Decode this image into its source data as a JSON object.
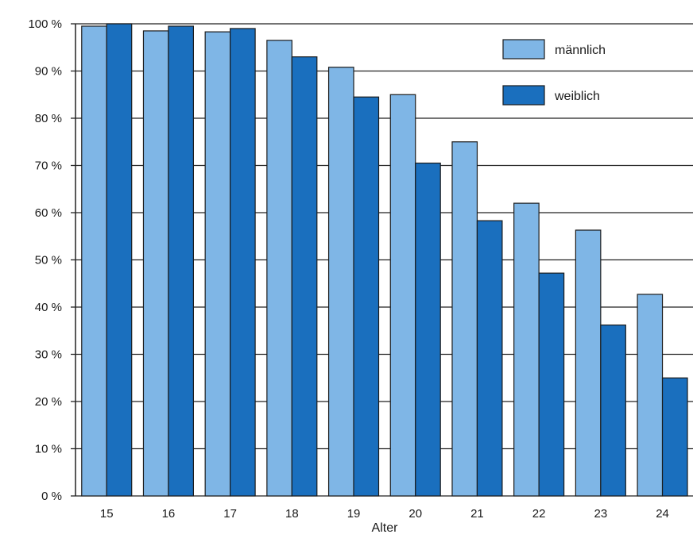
{
  "chart_data": {
    "type": "bar",
    "title": "",
    "xlabel": "Alter",
    "ylabel": "",
    "categories": [
      "15",
      "16",
      "17",
      "18",
      "19",
      "20",
      "21",
      "22",
      "23",
      "24"
    ],
    "ylim": [
      0,
      100
    ],
    "yticks": [
      0,
      10,
      20,
      30,
      40,
      50,
      60,
      70,
      80,
      90,
      100
    ],
    "ytick_labels": [
      "0 %",
      "10 %",
      "20 %",
      "30 %",
      "40 %",
      "50 %",
      "60 %",
      "70 %",
      "80 %",
      "90 %",
      "100 %"
    ],
    "grid": "horizontal",
    "legend_position": "top-right",
    "series": [
      {
        "name": "männlich",
        "color": "#7fb6e6",
        "values": [
          99.5,
          98.5,
          98.3,
          96.5,
          90.8,
          85.0,
          75.0,
          62.0,
          56.3,
          42.7
        ]
      },
      {
        "name": "weiblich",
        "color": "#1a6fbe",
        "values": [
          100,
          99.5,
          99.0,
          93.0,
          84.5,
          70.5,
          58.3,
          47.2,
          36.2,
          25.0
        ]
      }
    ]
  }
}
